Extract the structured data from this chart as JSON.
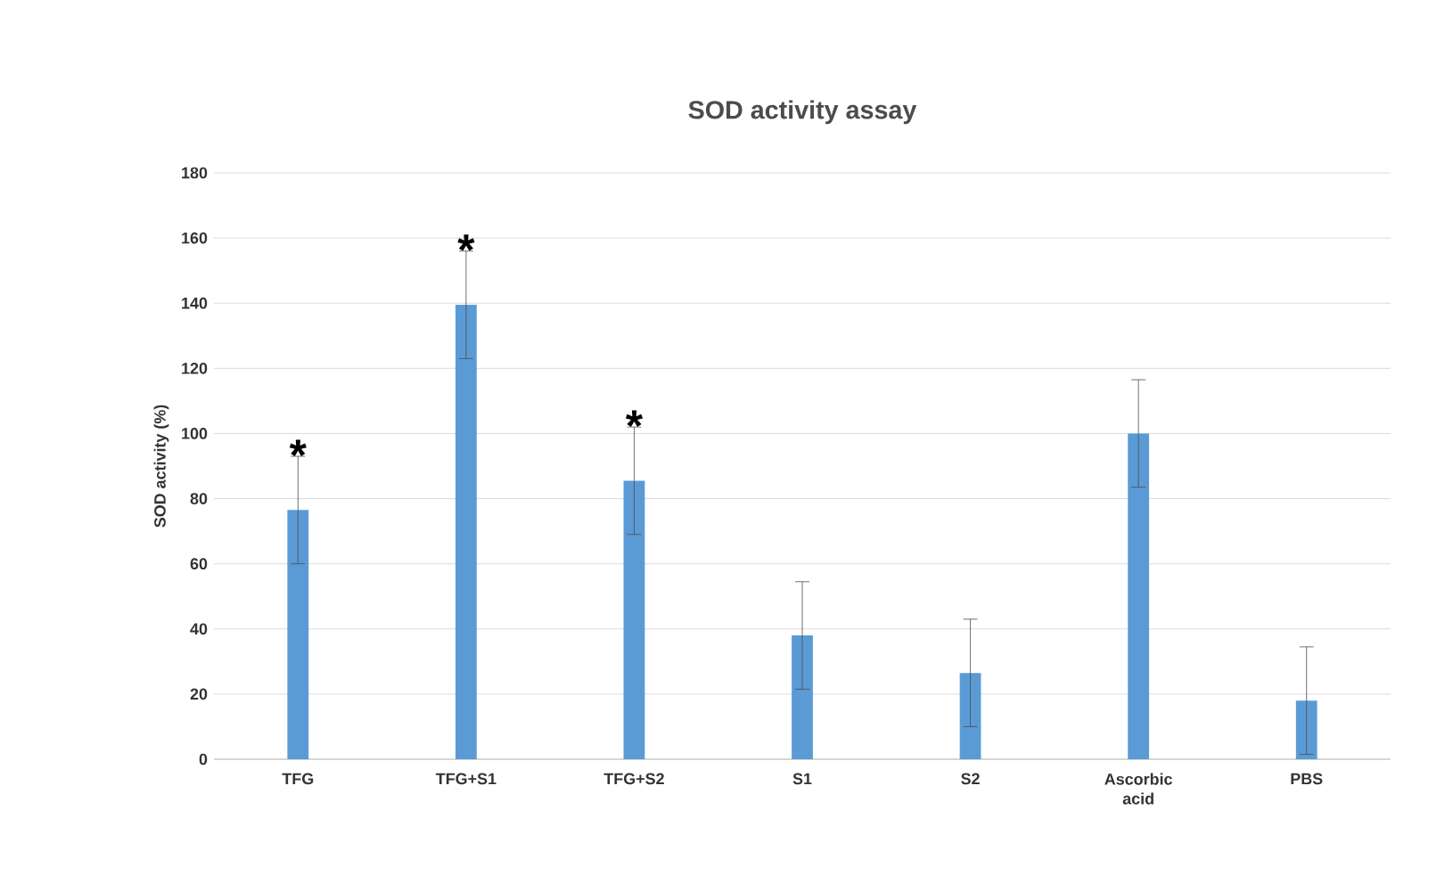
{
  "chart_data": {
    "type": "bar",
    "title": "SOD activity assay",
    "ylabel": "SOD activity (%)",
    "categories": [
      "TFG",
      "TFG+S1",
      "TFG+S2",
      "S1",
      "S2",
      "Ascorbic acid",
      "PBS"
    ],
    "values": [
      76.5,
      139.5,
      85.5,
      38,
      26.5,
      100,
      18
    ],
    "errors": [
      16.5,
      16.5,
      16.5,
      16.5,
      16.5,
      16.5,
      16.5
    ],
    "color": "#5b9bd5",
    "ylim": [
      0,
      180
    ],
    "yticks": [
      0,
      20,
      40,
      60,
      80,
      100,
      120,
      140,
      160,
      180
    ],
    "grid": "y",
    "annotations": [
      {
        "text": "*",
        "x": "TFG",
        "y": 93
      },
      {
        "text": "*",
        "x": "TFG+S1",
        "y": 156
      },
      {
        "text": "*",
        "x": "TFG+S2",
        "y": 102
      }
    ]
  }
}
